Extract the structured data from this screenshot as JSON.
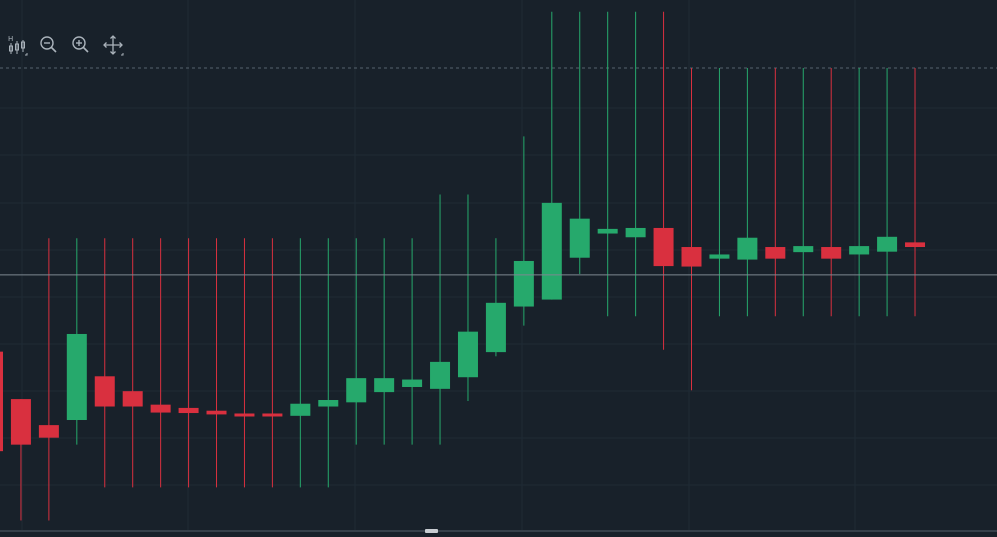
{
  "toolbar": {
    "tools": [
      {
        "name": "indicator-tool-icon",
        "glyph_label": "H"
      },
      {
        "name": "zoom-out-icon"
      },
      {
        "name": "zoom-in-icon"
      },
      {
        "name": "pan-move-icon"
      }
    ]
  },
  "colors": {
    "background": "#18212a",
    "grid": "#1f2a34",
    "up": "#26a96c",
    "down": "#d9303f",
    "reference_line": "#7d8890",
    "dashed_line": "#56636d",
    "icon": "#aab3bb"
  },
  "chart_data": {
    "type": "candlestick",
    "title": "",
    "xlabel": "",
    "ylabel": "",
    "ylim": [
      0,
      100
    ],
    "grid": true,
    "legend": "none",
    "reference_line_value": 55.5,
    "dashed_line_value": 100,
    "candles": [
      {
        "o": 39.0,
        "h": 39.0,
        "l": 17.6,
        "c": 17.6
      },
      {
        "o": 28.8,
        "h": 28.8,
        "l": 2.7,
        "c": 19.0
      },
      {
        "o": 23.2,
        "h": 63.4,
        "l": 2.7,
        "c": 20.5
      },
      {
        "o": 24.3,
        "h": 63.4,
        "l": 19.0,
        "c": 42.8
      },
      {
        "o": 33.7,
        "h": 63.4,
        "l": 9.8,
        "c": 27.2
      },
      {
        "o": 30.5,
        "h": 63.4,
        "l": 9.8,
        "c": 27.2
      },
      {
        "o": 27.6,
        "h": 63.4,
        "l": 9.8,
        "c": 25.9
      },
      {
        "o": 26.9,
        "h": 63.4,
        "l": 9.8,
        "c": 25.8
      },
      {
        "o": 26.3,
        "h": 63.4,
        "l": 9.8,
        "c": 25.5
      },
      {
        "o": 25.7,
        "h": 63.4,
        "l": 9.8,
        "c": 25.1
      },
      {
        "o": 25.7,
        "h": 63.4,
        "l": 9.8,
        "c": 25.2
      },
      {
        "o": 25.2,
        "h": 63.4,
        "l": 9.8,
        "c": 27.8
      },
      {
        "o": 27.2,
        "h": 63.4,
        "l": 9.8,
        "c": 28.6
      },
      {
        "o": 28.1,
        "h": 63.4,
        "l": 19.0,
        "c": 33.3
      },
      {
        "o": 30.3,
        "h": 63.4,
        "l": 19.0,
        "c": 33.3
      },
      {
        "o": 31.4,
        "h": 63.4,
        "l": 19.0,
        "c": 33.0
      },
      {
        "o": 31.0,
        "h": 72.8,
        "l": 19.0,
        "c": 36.8
      },
      {
        "o": 33.5,
        "h": 72.8,
        "l": 28.4,
        "c": 43.3
      },
      {
        "o": 38.9,
        "h": 63.4,
        "l": 38.0,
        "c": 49.5
      },
      {
        "o": 48.7,
        "h": 85.3,
        "l": 44.6,
        "c": 58.5
      },
      {
        "o": 50.2,
        "h": 112.1,
        "l": 50.2,
        "c": 71.0
      },
      {
        "o": 59.2,
        "h": 112.1,
        "l": 55.7,
        "c": 67.6
      },
      {
        "o": 64.4,
        "h": 112.1,
        "l": 46.6,
        "c": 65.4
      },
      {
        "o": 63.6,
        "h": 112.1,
        "l": 46.6,
        "c": 65.6
      },
      {
        "o": 65.6,
        "h": 112.1,
        "l": 39.4,
        "c": 57.4
      },
      {
        "o": 61.5,
        "h": 100.0,
        "l": 30.7,
        "c": 57.3
      },
      {
        "o": 59.0,
        "h": 100.0,
        "l": 46.6,
        "c": 59.9
      },
      {
        "o": 58.8,
        "h": 100.0,
        "l": 46.6,
        "c": 63.5
      },
      {
        "o": 61.5,
        "h": 100.0,
        "l": 46.6,
        "c": 59.0
      },
      {
        "o": 60.4,
        "h": 100.0,
        "l": 46.6,
        "c": 61.7
      },
      {
        "o": 61.5,
        "h": 100.0,
        "l": 46.6,
        "c": 59.0
      },
      {
        "o": 59.9,
        "h": 100.0,
        "l": 46.6,
        "c": 61.7
      },
      {
        "o": 60.5,
        "h": 100.0,
        "l": 46.6,
        "c": 63.7
      },
      {
        "o": 62.5,
        "h": 100.0,
        "l": 46.6,
        "c": 61.5
      }
    ]
  }
}
